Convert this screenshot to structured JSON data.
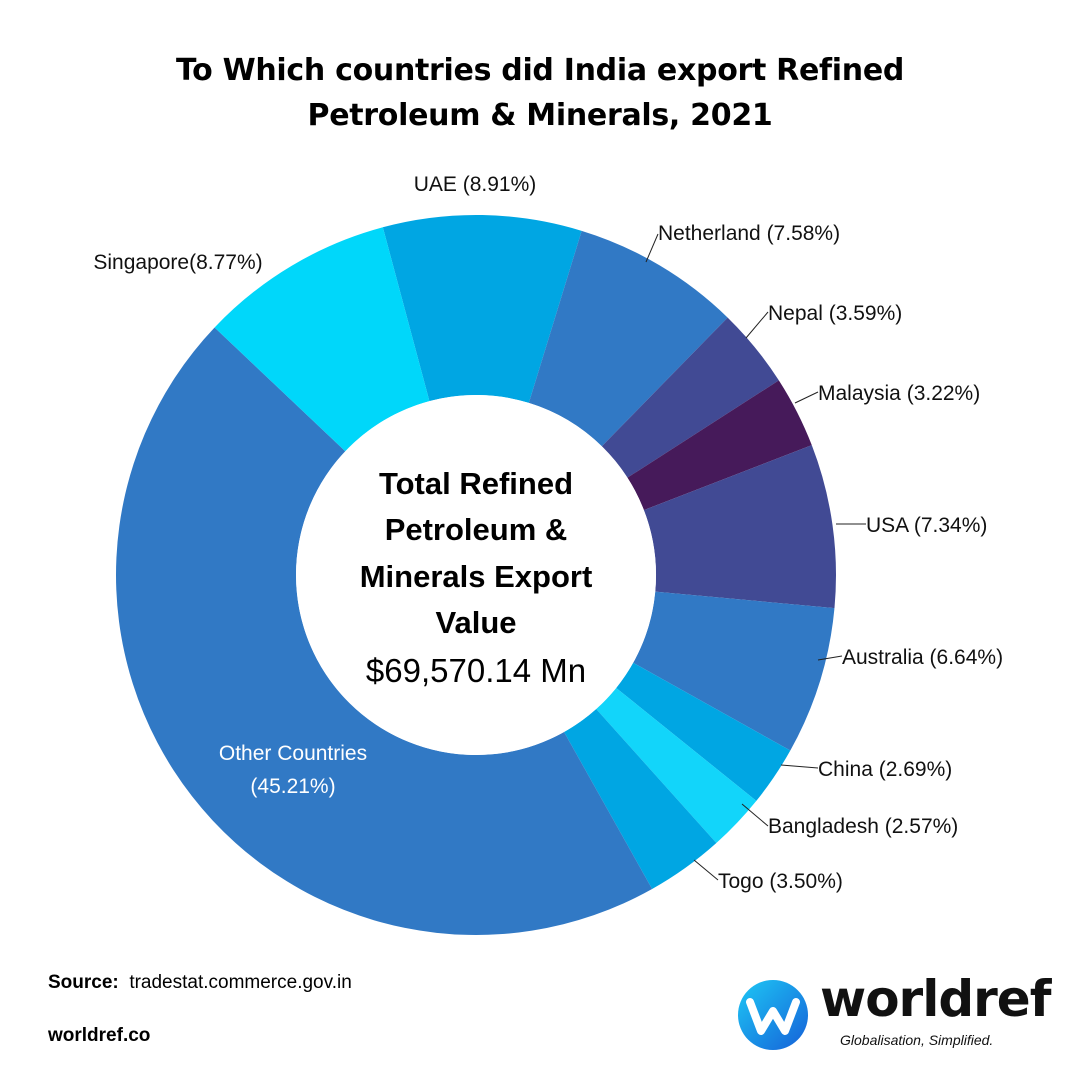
{
  "title_lines": [
    "To Which countries did India export Refined",
    "Petroleum & Minerals,  2021"
  ],
  "center": {
    "title_lines": [
      "Total Refined",
      "Petroleum &",
      "Minerals Export",
      "Value"
    ],
    "value": "$69,570.14 Mn"
  },
  "chart_data": {
    "type": "pie",
    "donut": true,
    "title": "To Which countries did India export Refined Petroleum & Minerals,  2021",
    "unit": "%",
    "slices": [
      {
        "name": "UAE",
        "value": 8.91,
        "label": "UAE  (8.91%)",
        "color": "#00A6E3"
      },
      {
        "name": "Netherland",
        "value": 7.58,
        "label": "Netherland (7.58%)",
        "color": "#3179C5"
      },
      {
        "name": "Nepal",
        "value": 3.59,
        "label": "Nepal (3.59%)",
        "color": "#414A94"
      },
      {
        "name": "Malaysia",
        "value": 3.22,
        "label": "Malaysia (3.22%)",
        "color": "#461A5A"
      },
      {
        "name": "USA",
        "value": 7.34,
        "label": "USA (7.34%)",
        "color": "#414A94"
      },
      {
        "name": "Australia",
        "value": 6.64,
        "label": "Australia (6.64%)",
        "color": "#3179C5"
      },
      {
        "name": "China",
        "value": 2.69,
        "label": "China (2.69%)",
        "color": "#00A6E3"
      },
      {
        "name": "Bangladesh",
        "value": 2.57,
        "label": "Bangladesh (2.57%)",
        "color": "#12D5FA"
      },
      {
        "name": "Togo",
        "value": 3.5,
        "label": "Togo (3.50%)",
        "color": "#00A6E3"
      },
      {
        "name": "Other Countries",
        "value": 45.21,
        "label_lines": [
          "Other Countries",
          "(45.21%)"
        ],
        "color": "#3179C5"
      },
      {
        "name": "Singapore",
        "value": 8.77,
        "label": "Singapore(8.77%)",
        "color": "#00D7FA"
      }
    ]
  },
  "footer": {
    "source_label": "Source:",
    "source_value": "tradestat.commerce.gov.in",
    "site": "worldref.co"
  },
  "logo": {
    "wordmark": "worldref",
    "tagline": "Globalisation, Simplified.",
    "colors": {
      "gradient_start": "#1EC8F5",
      "gradient_end": "#1560D8"
    }
  }
}
